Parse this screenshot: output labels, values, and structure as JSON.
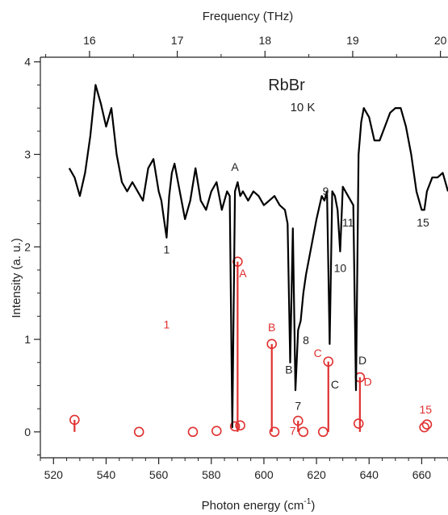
{
  "chart_data": {
    "type": "line",
    "title": "RbBr",
    "subtitle": "10 K",
    "xlabel": "Photon energy (cm",
    "xlabel_superscript": "-1",
    "xlabel_suffix": ")",
    "ylabel": "Intensity (a. u.)",
    "top_axis_label": "Frequency (THz)",
    "xlim": [
      515,
      670
    ],
    "ylim": [
      -0.28,
      4.05
    ],
    "x_ticks": [
      520,
      540,
      560,
      580,
      600,
      620,
      640,
      660
    ],
    "y_ticks": [
      0,
      1,
      2,
      3,
      4
    ],
    "top_ticks": [
      16,
      17,
      18,
      19,
      20
    ],
    "thz_to_cm": 33.356,
    "grid": false,
    "colors": {
      "spectrum": "#000000",
      "calc": "#e03030"
    },
    "series": [
      {
        "name": "",
        "x": [
          526,
          528,
          530,
          532,
          534,
          536,
          538,
          540,
          542,
          544,
          546,
          548,
          550,
          552,
          554,
          556,
          558,
          560,
          561,
          562,
          563,
          564,
          565,
          566,
          568,
          570,
          572,
          574,
          576,
          578,
          580,
          582,
          584,
          586,
          587,
          588,
          589,
          590,
          591,
          592,
          594,
          596,
          598,
          600,
          602,
          604,
          606,
          608,
          609,
          610,
          611,
          612,
          613,
          614,
          615,
          616,
          618,
          620,
          622,
          623,
          624,
          625,
          626,
          627,
          628,
          629,
          630,
          632,
          634,
          635,
          636,
          637,
          638,
          640,
          642,
          644,
          646,
          648,
          650,
          652,
          654,
          656,
          658,
          660,
          661,
          662,
          664,
          666,
          668,
          670
        ],
        "y": [
          2.85,
          2.75,
          2.55,
          2.8,
          3.2,
          3.75,
          3.55,
          3.3,
          3.5,
          3.0,
          2.7,
          2.6,
          2.7,
          2.6,
          2.5,
          2.85,
          2.95,
          2.6,
          2.5,
          2.3,
          2.1,
          2.55,
          2.8,
          2.9,
          2.6,
          2.3,
          2.5,
          2.85,
          2.5,
          2.4,
          2.6,
          2.7,
          2.4,
          2.6,
          2.55,
          0.05,
          2.6,
          2.7,
          2.55,
          2.6,
          2.5,
          2.6,
          2.55,
          2.45,
          2.5,
          2.55,
          2.45,
          2.4,
          2.25,
          0.75,
          2.2,
          0.45,
          1.1,
          1.2,
          1.5,
          1.7,
          2.0,
          2.3,
          2.55,
          2.5,
          2.6,
          0.95,
          2.6,
          2.55,
          2.4,
          1.95,
          2.65,
          2.55,
          2.45,
          0.45,
          3.0,
          3.35,
          3.5,
          3.4,
          3.15,
          3.15,
          3.3,
          3.45,
          3.5,
          3.5,
          3.3,
          3.0,
          2.6,
          2.4,
          2.4,
          2.6,
          2.75,
          2.75,
          2.8,
          2.6
        ]
      }
    ],
    "calculated_modes": {
      "x": [
        528,
        552.5,
        573,
        582,
        589,
        590,
        591,
        603,
        604,
        613,
        615,
        622.5,
        624.5,
        636,
        636.5,
        661,
        662
      ],
      "y": [
        0.13,
        0.0,
        0.0,
        0.01,
        0.06,
        1.84,
        0.07,
        0.95,
        0.0,
        0.12,
        0.0,
        0.0,
        0.76,
        0.09,
        0.59,
        0.05,
        0.08
      ],
      "stems": [
        true,
        false,
        false,
        false,
        false,
        true,
        false,
        true,
        false,
        true,
        false,
        false,
        true,
        false,
        true,
        false,
        false
      ]
    },
    "mode_labels": [
      {
        "text": "A",
        "x": 589,
        "y": 2.82,
        "color": "black"
      },
      {
        "text": "1",
        "x": 563,
        "y": 1.93,
        "color": "black"
      },
      {
        "text": "B",
        "x": 609.5,
        "y": 0.63,
        "color": "black"
      },
      {
        "text": "7",
        "x": 613,
        "y": 0.24,
        "color": "black"
      },
      {
        "text": "8",
        "x": 616,
        "y": 0.95,
        "color": "black"
      },
      {
        "text": "9",
        "x": 623.5,
        "y": 2.56,
        "color": "black"
      },
      {
        "text": "C",
        "x": 627,
        "y": 0.47,
        "color": "black"
      },
      {
        "text": "10",
        "x": 629,
        "y": 1.73,
        "color": "black"
      },
      {
        "text": "11",
        "x": 632,
        "y": 2.22,
        "color": "black"
      },
      {
        "text": "D",
        "x": 637.5,
        "y": 0.73,
        "color": "black"
      },
      {
        "text": "15",
        "x": 660.5,
        "y": 2.22,
        "color": "black"
      },
      {
        "text": "1",
        "x": 563,
        "y": 1.12,
        "color": "red"
      },
      {
        "text": "A",
        "x": 592,
        "y": 1.67,
        "color": "red"
      },
      {
        "text": "B",
        "x": 603,
        "y": 1.09,
        "color": "red"
      },
      {
        "text": "C",
        "x": 620.5,
        "y": 0.81,
        "color": "red"
      },
      {
        "text": "D",
        "x": 639.5,
        "y": 0.5,
        "color": "red"
      },
      {
        "text": "7",
        "x": 611,
        "y": -0.03,
        "color": "red"
      },
      {
        "text": "15",
        "x": 661.5,
        "y": 0.2,
        "color": "red"
      }
    ]
  }
}
